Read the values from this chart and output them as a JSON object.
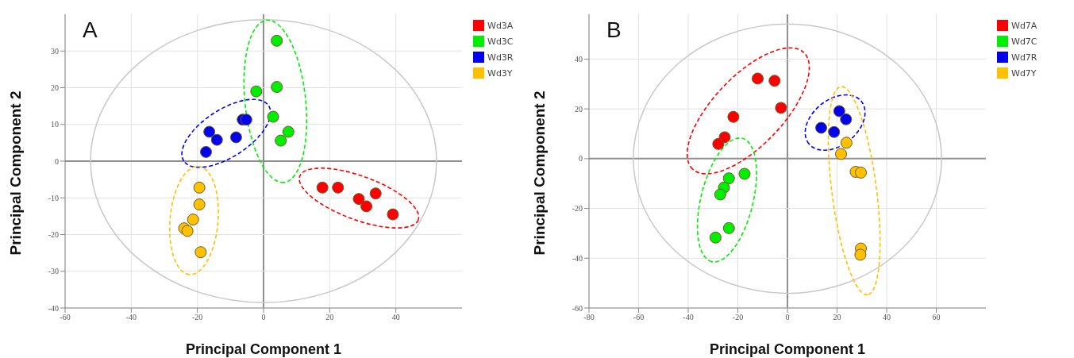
{
  "chart_data": [
    {
      "type": "scatter",
      "title": "A",
      "xlabel": "Principal Component 1",
      "ylabel": "Principal Component 2",
      "xlim": [
        -60,
        60
      ],
      "ylim": [
        -40,
        40
      ],
      "xticks": [
        -60,
        -40,
        -20,
        0,
        20,
        40
      ],
      "yticks": [
        -40,
        -30,
        -20,
        -10,
        0,
        10,
        20,
        30
      ],
      "grid": true,
      "legend": "top right",
      "marker": "circle",
      "series": [
        {
          "name": "Wd3A",
          "color": "#ff0000",
          "x": [
            17.8,
            22.5,
            28.8,
            31.1,
            33.9,
            39.1
          ],
          "values": [
            -7.2,
            -7.2,
            -10.3,
            -12.3,
            -8.8,
            -14.5
          ]
        },
        {
          "name": "Wd3C",
          "color": "#00ee00",
          "x": [
            4.0,
            -2.2,
            4.0,
            2.9,
            7.5,
            5.2
          ],
          "values": [
            32.8,
            19.0,
            20.2,
            12.1,
            8.0,
            5.6
          ]
        },
        {
          "name": "Wd3R",
          "color": "#0000ee",
          "x": [
            -16.4,
            -14.1,
            -17.4,
            -8.3,
            -6.3,
            -5.2
          ],
          "values": [
            8.0,
            5.8,
            2.5,
            6.5,
            11.3,
            11.3
          ]
        },
        {
          "name": "Wd3Y",
          "color": "#ffc000",
          "x": [
            -19.4,
            -19.4,
            -21.3,
            -24.0,
            -23.0,
            -19.0
          ],
          "values": [
            -7.2,
            -11.8,
            -15.9,
            -18.3,
            -19.0,
            -24.8
          ]
        }
      ]
    },
    {
      "type": "scatter",
      "title": "B",
      "xlabel": "Principal Component 1",
      "ylabel": "Principal Component 2",
      "xlim": [
        -80,
        80
      ],
      "ylim": [
        -60,
        58
      ],
      "xticks": [
        -80,
        -60,
        -40,
        -20,
        0,
        20,
        40,
        60
      ],
      "yticks": [
        -60,
        -40,
        -20,
        0,
        20,
        40
      ],
      "grid": true,
      "legend": "top right",
      "marker": "circle",
      "series": [
        {
          "name": "Wd7A",
          "color": "#ff0000",
          "x": [
            -12.0,
            -5.2,
            -2.6,
            -21.8,
            -25.3,
            -27.9
          ],
          "values": [
            32.2,
            31.3,
            20.4,
            16.8,
            8.6,
            5.9
          ]
        },
        {
          "name": "Wd7C",
          "color": "#00ee00",
          "x": [
            -17.3,
            -23.6,
            -25.6,
            -27.1,
            -23.6,
            -29.0
          ],
          "values": [
            -6.1,
            -7.9,
            -11.6,
            -14.4,
            -27.9,
            -31.7
          ]
        },
        {
          "name": "Wd7R",
          "color": "#0000ee",
          "x": [
            13.6,
            20.9,
            23.6,
            18.8
          ],
          "values": [
            12.4,
            19.1,
            15.8,
            10.7
          ]
        },
        {
          "name": "Wd7Y",
          "color": "#ffc000",
          "x": [
            23.8,
            21.6,
            27.5,
            29.6,
            29.6,
            29.4
          ],
          "values": [
            6.4,
            1.9,
            -5.3,
            -5.6,
            -36.1,
            -38.6
          ]
        }
      ]
    }
  ]
}
